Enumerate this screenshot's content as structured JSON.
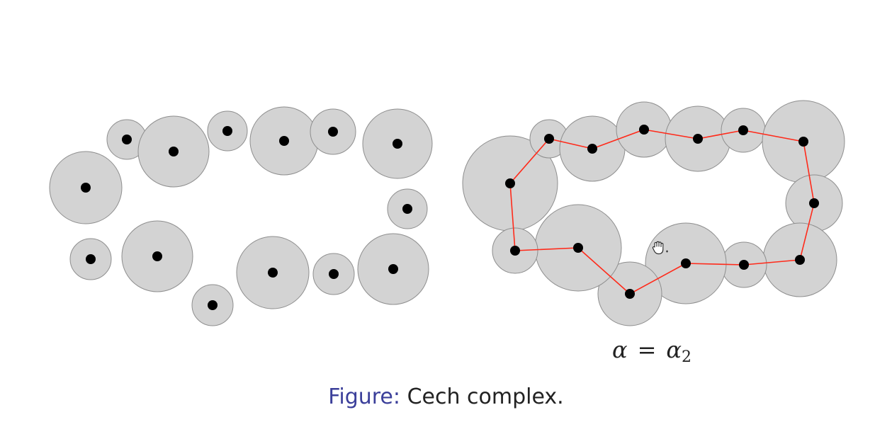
{
  "label": {
    "var": "α",
    "eq": "=",
    "base": "α",
    "sub": "2"
  },
  "caption": {
    "prefix": "Figure:",
    "text": "Cech complex."
  },
  "colors": {
    "disk_fill": "#d3d3d3",
    "disk_stroke": "#8e8e8e",
    "point": "#000000",
    "edge": "#ff2a1a",
    "caption_prefix": "#3b3f9a"
  }
}
